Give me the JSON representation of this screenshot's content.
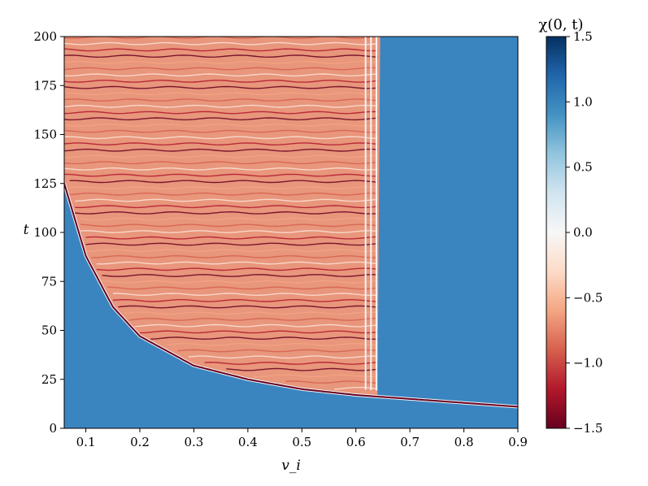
{
  "chart_data": {
    "type": "heatmap",
    "title": "",
    "xlabel": "v_i",
    "ylabel": "t",
    "xlim": [
      0.06,
      0.9
    ],
    "ylim": [
      0,
      200
    ],
    "x_ticks": [
      0.1,
      0.2,
      0.3,
      0.4,
      0.5,
      0.6,
      0.7,
      0.8,
      0.9
    ],
    "x_tick_labels": [
      "0.1",
      "0.2",
      "0.3",
      "0.4",
      "0.5",
      "0.6",
      "0.7",
      "0.8",
      "0.9"
    ],
    "y_ticks": [
      0,
      25,
      50,
      75,
      100,
      125,
      150,
      175,
      200
    ],
    "y_tick_labels": [
      "0",
      "25",
      "50",
      "75",
      "100",
      "125",
      "150",
      "175",
      "200"
    ],
    "colorbar": {
      "label": "χ(0, t)",
      "range": [
        -1.5,
        1.5
      ],
      "ticks": [
        -1.5,
        -1.0,
        -0.5,
        0.0,
        0.5,
        1.0,
        1.5
      ],
      "tick_labels": [
        "−1.5",
        "−1.0",
        "−0.5",
        "0.0",
        "0.5",
        "1.0",
        "1.5"
      ],
      "colormap": "RdBu"
    },
    "background_value": 1.0,
    "regions": [
      {
        "description": "collision boundary curve",
        "t_at_v": [
          [
            0.06,
            125
          ],
          [
            0.1,
            88
          ],
          [
            0.15,
            62
          ],
          [
            0.2,
            47
          ],
          [
            0.3,
            32
          ],
          [
            0.4,
            25
          ],
          [
            0.5,
            20
          ],
          [
            0.6,
            17
          ],
          [
            0.7,
            15
          ],
          [
            0.8,
            13
          ],
          [
            0.9,
            11
          ]
        ]
      },
      {
        "description": "oscillating region",
        "v_range": [
          0.06,
          0.645
        ],
        "value_range": [
          -1.5,
          0.3
        ]
      },
      {
        "description": "separated region",
        "v_range": [
          0.645,
          0.9
        ],
        "value": 1.0
      }
    ]
  },
  "colors": {
    "background_blue": "#3a85c0",
    "deep_blue": "#08306b",
    "deep_red": "#67001f",
    "salmon": "#e8876a"
  }
}
